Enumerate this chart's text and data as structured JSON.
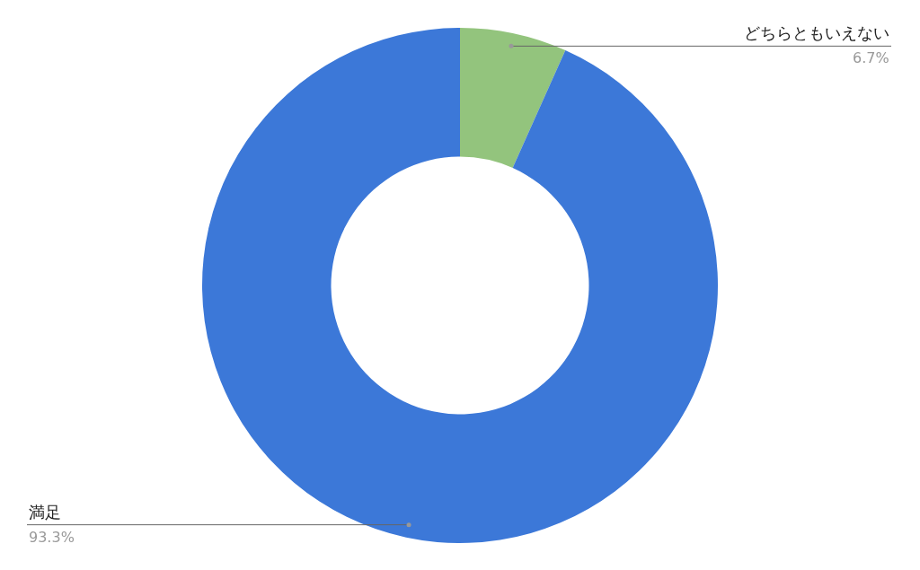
{
  "chart_data": {
    "type": "donut",
    "categories": [
      "どちらともいえない",
      "満足"
    ],
    "values": [
      6.7,
      93.3
    ],
    "colors": [
      "#93c47d",
      "#3c78d8"
    ],
    "value_labels": [
      "6.7%",
      "93.3%"
    ]
  }
}
